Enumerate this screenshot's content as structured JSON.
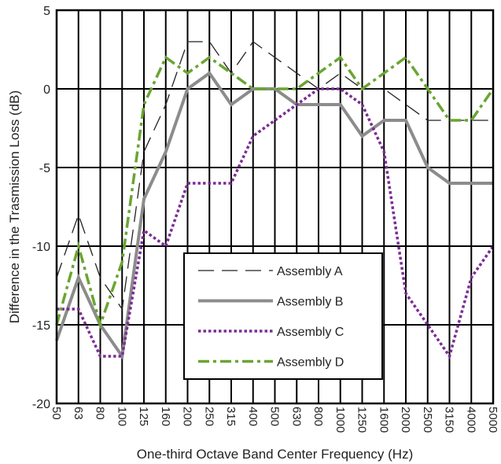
{
  "chart_data": {
    "type": "line",
    "title": "",
    "xlabel": "One-third Octave Band Center Frequency (Hz)",
    "ylabel": "Difference in the Trasmission Loss (dB)",
    "ylim": [
      -20,
      5
    ],
    "yticks": [
      "5",
      "0",
      "-5",
      "-10",
      "-15",
      "-20"
    ],
    "categories": [
      "50",
      "63",
      "80",
      "100",
      "125",
      "160",
      "200",
      "250",
      "315",
      "400",
      "500",
      "630",
      "800",
      "1000",
      "1250",
      "1600",
      "2000",
      "2500",
      "3150",
      "4000",
      "5000"
    ],
    "grid": true,
    "legend_position": "center",
    "series": [
      {
        "name": "Assembly A",
        "color": "#222222",
        "dash": "long-dash",
        "values": [
          -12,
          -8,
          -12,
          -14,
          -4,
          -1,
          3,
          3,
          1,
          3,
          2,
          1,
          0,
          1,
          0,
          0,
          -1,
          -2,
          -2,
          -2,
          -2
        ]
      },
      {
        "name": "Assembly B",
        "color": "#8c8c8c",
        "dash": "solid",
        "values": [
          -16,
          -12,
          -15,
          -17,
          -7,
          -4,
          0,
          1,
          -1,
          0,
          0,
          -1,
          -1,
          -1,
          -3,
          -2,
          -2,
          -5,
          -6,
          -6,
          -6
        ]
      },
      {
        "name": "Assembly C",
        "color": "#7a2d94",
        "dash": "dotted",
        "values": [
          -14,
          -14,
          -17,
          -17,
          -9,
          -10,
          -6,
          -6,
          -6,
          -3,
          -2,
          -1,
          0,
          0,
          -1,
          -4,
          -13,
          -15,
          -17,
          -12,
          -10
        ]
      },
      {
        "name": "Assembly D",
        "color": "#6aa532",
        "dash": "dash-dot",
        "values": [
          -15,
          -10,
          -15,
          -11,
          -1,
          2,
          1,
          2,
          1,
          0,
          0,
          0,
          1,
          2,
          0,
          1,
          2,
          0,
          -2,
          -2,
          0
        ]
      }
    ]
  }
}
